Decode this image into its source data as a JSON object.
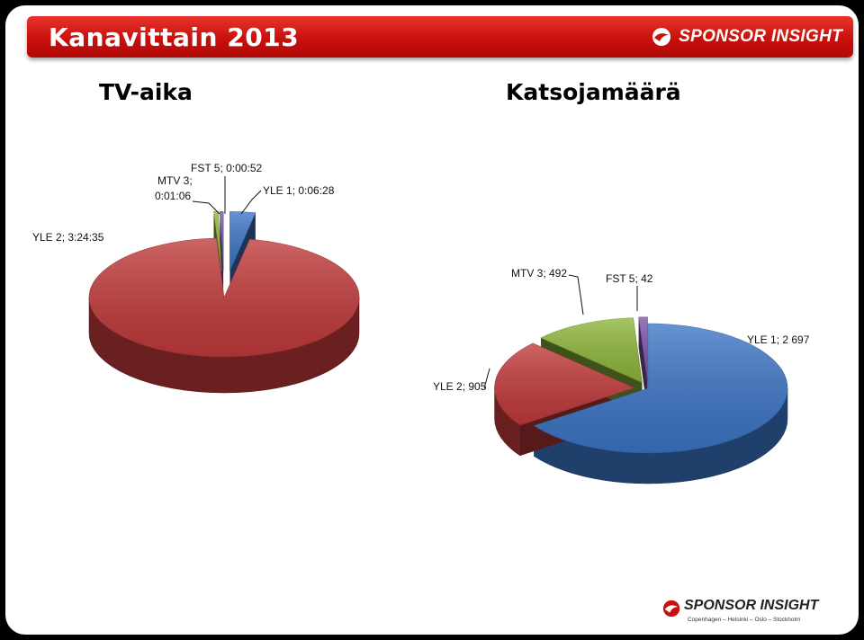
{
  "header": {
    "title": "Kanavittain 2013",
    "brand": "SPONSOR INSIGHT"
  },
  "footer": {
    "brand": "SPONSOR INSIGHT",
    "cities": "Copenhagen – Helsinki – Oslo – Stockholm"
  },
  "colors": {
    "header_red": "#d21a14",
    "yle1": "#3b74c4",
    "yle2": "#c0393a",
    "mtv3": "#8db63a",
    "fst5": "#7c52a8"
  },
  "chart_data": [
    {
      "type": "pie",
      "title": "TV-aika",
      "slices": [
        {
          "name": "YLE 1",
          "value": "0:06:28",
          "seconds": 388,
          "label": "YLE 1; 0:06:28",
          "color": "#3b74c4",
          "exploded": true
        },
        {
          "name": "YLE 2",
          "value": "3:24:35",
          "seconds": 12275,
          "label": "YLE 2; 3:24:35",
          "color": "#c0393a",
          "exploded": false
        },
        {
          "name": "MTV 3",
          "value": "0:01:06",
          "seconds": 66,
          "label_line1": "MTV 3;",
          "label_line2": "0:01:06",
          "color": "#8db63a",
          "exploded": true
        },
        {
          "name": "FST 5",
          "value": "0:00:52",
          "seconds": 52,
          "label": "FST 5; 0:00:52",
          "color": "#7c52a8",
          "exploded": true
        }
      ]
    },
    {
      "type": "pie",
      "title": "Katsojamäärä",
      "slices": [
        {
          "name": "YLE 1",
          "value": 2697,
          "label": "YLE 1; 2 697",
          "color": "#3b74c4",
          "exploded": false
        },
        {
          "name": "YLE 2",
          "value": 905,
          "label": "YLE 2; 905",
          "color": "#c0393a",
          "exploded": true
        },
        {
          "name": "MTV 3",
          "value": 492,
          "label": "MTV 3; 492",
          "color": "#8db63a",
          "exploded": true
        },
        {
          "name": "FST 5",
          "value": 42,
          "label": "FST 5; 42",
          "color": "#7c52a8",
          "exploded": true
        }
      ]
    }
  ]
}
